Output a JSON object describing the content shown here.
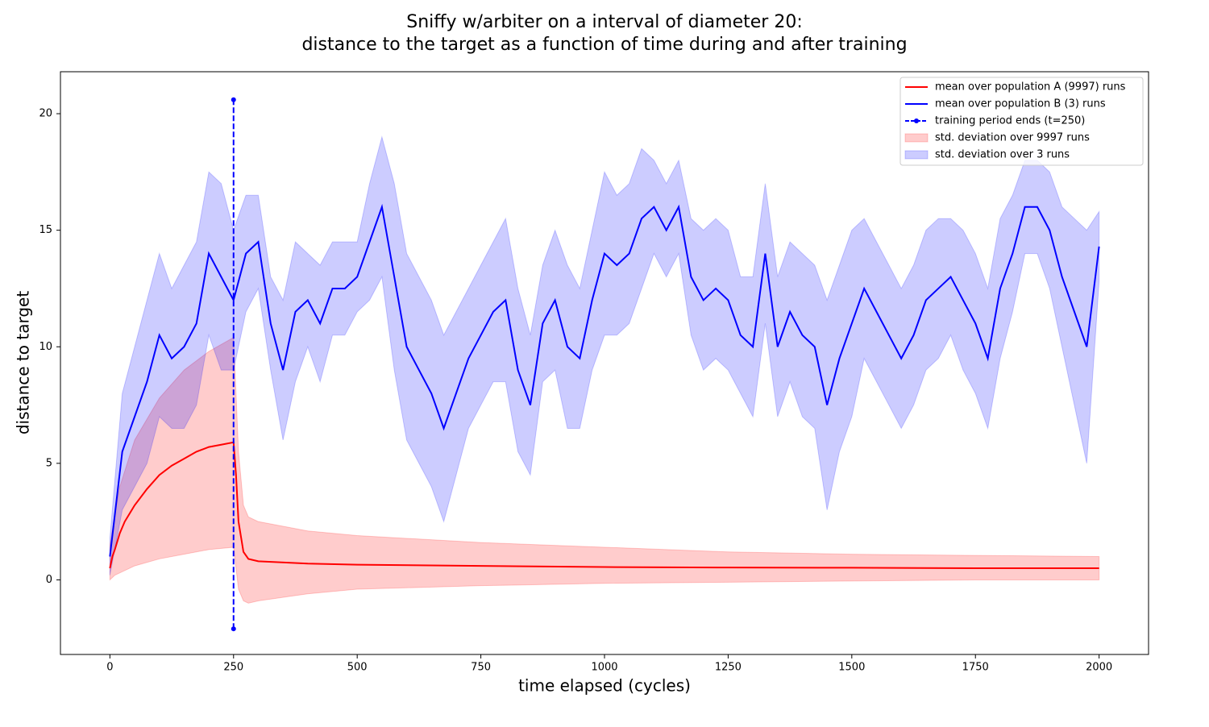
{
  "chart_data": {
    "type": "line",
    "title": "Sniffy w/arbiter on a interval of diameter 20:",
    "subtitle": "distance to the target as a function of time during and after training",
    "x_label": "time elapsed (cycles)",
    "y_label": "distance to target",
    "xlim": [
      -100,
      2100
    ],
    "ylim": [
      -3.2,
      21.8
    ],
    "xticks": [
      0,
      250,
      500,
      750,
      1000,
      1250,
      1500,
      1750,
      2000
    ],
    "yticks": [
      0,
      5,
      10,
      15,
      20
    ],
    "legend": "upper right",
    "series": [
      {
        "name": "mean over population A (9997) runs",
        "color": "#ff0000",
        "kind": "line",
        "x": [
          0,
          5,
          10,
          20,
          30,
          50,
          75,
          100,
          125,
          150,
          175,
          200,
          225,
          250,
          255,
          260,
          270,
          280,
          300,
          400,
          500,
          750,
          1000,
          1250,
          1500,
          1750,
          2000
        ],
        "values": [
          0.5,
          1.0,
          1.3,
          2.0,
          2.5,
          3.2,
          3.9,
          4.5,
          4.9,
          5.2,
          5.5,
          5.7,
          5.8,
          5.9,
          4.5,
          2.5,
          1.2,
          0.9,
          0.8,
          0.7,
          0.65,
          0.6,
          0.55,
          0.53,
          0.52,
          0.5,
          0.5
        ]
      },
      {
        "name": "mean over population B (3) runs",
        "color": "#0000ff",
        "kind": "line",
        "x": [
          0,
          25,
          50,
          75,
          100,
          125,
          150,
          175,
          200,
          225,
          250,
          275,
          300,
          325,
          350,
          375,
          400,
          425,
          450,
          475,
          500,
          525,
          550,
          575,
          600,
          625,
          650,
          675,
          700,
          725,
          750,
          775,
          800,
          825,
          850,
          875,
          900,
          925,
          950,
          975,
          1000,
          1025,
          1050,
          1075,
          1100,
          1125,
          1150,
          1175,
          1200,
          1225,
          1250,
          1275,
          1300,
          1325,
          1350,
          1375,
          1400,
          1425,
          1450,
          1475,
          1500,
          1525,
          1550,
          1575,
          1600,
          1625,
          1650,
          1675,
          1700,
          1725,
          1750,
          1775,
          1800,
          1825,
          1850,
          1875,
          1900,
          1925,
          1950,
          1975,
          2000
        ],
        "values": [
          1.0,
          5.5,
          7,
          8.5,
          10.5,
          9.5,
          10,
          11,
          14,
          13,
          12,
          14,
          14.5,
          11,
          9,
          11.5,
          12,
          11,
          12.5,
          12.5,
          13,
          14.5,
          16,
          13,
          10,
          9,
          8,
          6.5,
          8,
          9.5,
          10.5,
          11.5,
          12,
          9,
          7.5,
          11,
          12,
          10,
          9.5,
          12,
          14,
          13.5,
          14,
          15.5,
          16,
          15,
          16,
          13,
          12,
          12.5,
          12,
          10.5,
          10,
          14,
          10,
          11.5,
          10.5,
          10,
          7.5,
          9.5,
          11,
          12.5,
          11.5,
          10.5,
          9.5,
          10.5,
          12,
          12.5,
          13,
          12,
          11,
          9.5,
          12.5,
          14,
          16,
          16,
          15,
          13,
          11.5,
          10,
          14.3
        ]
      },
      {
        "name": "training period ends (t=250)",
        "color": "#0000ff",
        "kind": "marker-line",
        "linestyle": "dashed",
        "x": [
          250,
          250
        ],
        "values": [
          -2.1,
          20.6
        ]
      },
      {
        "name": "std. deviation over 9997 runs",
        "color": "#ff0000",
        "kind": "band",
        "opacity": 0.2,
        "x": [
          0,
          10,
          20,
          50,
          100,
          150,
          200,
          250,
          255,
          260,
          270,
          280,
          300,
          400,
          500,
          750,
          1000,
          1250,
          1500,
          1750,
          2000
        ],
        "lower": [
          0,
          0.2,
          0.3,
          0.6,
          0.9,
          1.1,
          1.3,
          1.4,
          0.5,
          -0.4,
          -0.9,
          -1.0,
          -0.9,
          -0.6,
          -0.4,
          -0.25,
          -0.15,
          -0.1,
          -0.05,
          0,
          0
        ],
        "upper": [
          1.5,
          2.8,
          4,
          6,
          7.8,
          9,
          9.8,
          10.4,
          8,
          5.5,
          3.2,
          2.7,
          2.5,
          2.1,
          1.9,
          1.6,
          1.4,
          1.2,
          1.1,
          1.05,
          1.0
        ]
      },
      {
        "name": "std. deviation over 3 runs",
        "color": "#0000ff",
        "kind": "band",
        "opacity": 0.2,
        "x": [
          0,
          25,
          50,
          75,
          100,
          125,
          150,
          175,
          200,
          225,
          250,
          275,
          300,
          325,
          350,
          375,
          400,
          425,
          450,
          475,
          500,
          525,
          550,
          575,
          600,
          625,
          650,
          675,
          700,
          725,
          750,
          775,
          800,
          825,
          850,
          875,
          900,
          925,
          950,
          975,
          1000,
          1025,
          1050,
          1075,
          1100,
          1125,
          1150,
          1175,
          1200,
          1225,
          1250,
          1275,
          1300,
          1325,
          1350,
          1375,
          1400,
          1425,
          1450,
          1475,
          1500,
          1525,
          1550,
          1575,
          1600,
          1625,
          1650,
          1675,
          1700,
          1725,
          1750,
          1775,
          1800,
          1825,
          1850,
          1875,
          1900,
          1925,
          1950,
          1975,
          2000
        ],
        "lower": [
          0.2,
          3,
          4,
          5,
          7,
          6.5,
          6.5,
          7.5,
          10.5,
          9,
          9,
          11.5,
          12.5,
          9,
          6,
          8.5,
          10,
          8.5,
          10.5,
          10.5,
          11.5,
          12,
          13,
          9,
          6,
          5,
          4,
          2.5,
          4.5,
          6.5,
          7.5,
          8.5,
          8.5,
          5.5,
          4.5,
          8.5,
          9,
          6.5,
          6.5,
          9,
          10.5,
          10.5,
          11,
          12.5,
          14,
          13,
          14,
          10.5,
          9,
          9.5,
          9,
          8,
          7,
          11,
          7,
          8.5,
          7,
          6.5,
          3,
          5.5,
          7,
          9.5,
          8.5,
          7.5,
          6.5,
          7.5,
          9,
          9.5,
          10.5,
          9,
          8,
          6.5,
          9.5,
          11.5,
          14,
          14,
          12.5,
          10,
          7.5,
          5,
          12.8
        ],
        "upper": [
          1.8,
          8,
          10,
          12,
          14,
          12.5,
          13.5,
          14.5,
          17.5,
          17,
          15,
          16.5,
          16.5,
          13,
          12,
          14.5,
          14,
          13.5,
          14.5,
          14.5,
          14.5,
          17,
          19,
          17,
          14,
          13,
          12,
          10.5,
          11.5,
          12.5,
          13.5,
          14.5,
          15.5,
          12.5,
          10.5,
          13.5,
          15,
          13.5,
          12.5,
          15,
          17.5,
          16.5,
          17,
          18.5,
          18,
          17,
          18,
          15.5,
          15,
          15.5,
          15,
          13,
          13,
          17,
          13,
          14.5,
          14,
          13.5,
          12,
          13.5,
          15,
          15.5,
          14.5,
          13.5,
          12.5,
          13.5,
          15,
          15.5,
          15.5,
          15,
          14,
          12.5,
          15.5,
          16.5,
          18,
          18,
          17.5,
          16,
          15.5,
          15,
          15.8
        ]
      }
    ]
  }
}
